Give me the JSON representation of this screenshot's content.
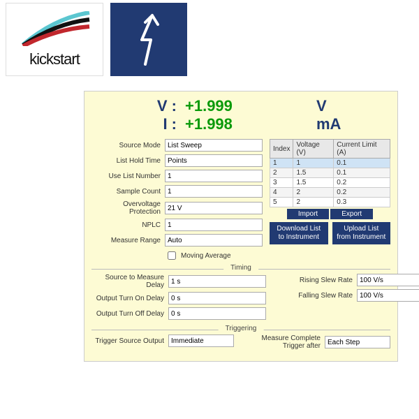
{
  "logos": {
    "kickstart_text": "kickstart",
    "bolt_bg": "#213a72"
  },
  "panel": {
    "bg": "#fdfbd4",
    "readout": {
      "v_label": "V :",
      "v_value": "+1.999",
      "v_unit": "V",
      "i_label": "I :",
      "i_value": "+1.998",
      "i_unit": "mA",
      "label_color": "#213a72",
      "value_color": "#0a9a0a"
    },
    "fields": {
      "source_mode": {
        "label": "Source Mode",
        "value": "List Sweep"
      },
      "list_hold_time": {
        "label": "List Hold Time",
        "value": "Points"
      },
      "use_list_number": {
        "label": "Use List Number",
        "value": "1"
      },
      "sample_count": {
        "label": "Sample Count",
        "value": "1"
      },
      "ov_protection": {
        "label": "Overvoltage Protection",
        "value": "21 V"
      },
      "nplc": {
        "label": "NPLC",
        "value": "1"
      },
      "measure_range": {
        "label": "Measure Range",
        "value": "Auto"
      },
      "moving_average": {
        "label": "Moving Average",
        "checked": false
      }
    },
    "list_table": {
      "headers": [
        "Index",
        "Voltage (V)",
        "Current Limit (A)"
      ],
      "rows": [
        {
          "idx": "1",
          "v": "1",
          "c": "0.1",
          "sel": true
        },
        {
          "idx": "2",
          "v": "1.5",
          "c": "0.1",
          "sel": false
        },
        {
          "idx": "3",
          "v": "1.5",
          "c": "0.2",
          "sel": false
        },
        {
          "idx": "4",
          "v": "2",
          "c": "0.2",
          "sel": false
        },
        {
          "idx": "5",
          "v": "2",
          "c": "0.3",
          "sel": false
        }
      ],
      "buttons": {
        "import": "Import",
        "export": "Export",
        "download": "Download List to Instrument",
        "upload": "Upload List from Instrument"
      }
    },
    "timing": {
      "legend": "Timing",
      "source_to_measure_delay": {
        "label": "Source to Measure Delay",
        "value": "1 s"
      },
      "output_turn_on_delay": {
        "label": "Output Turn On Delay",
        "value": "0 s"
      },
      "output_turn_off_delay": {
        "label": "Output Turn Off Delay",
        "value": "0 s"
      },
      "rising_slew_rate": {
        "label": "Rising Slew Rate",
        "value": "100 V/s"
      },
      "falling_slew_rate": {
        "label": "Falling Slew Rate",
        "value": "100 V/s"
      }
    },
    "triggering": {
      "legend": "Triggering",
      "trigger_source_output": {
        "label": "Trigger Source Output",
        "value": "Immediate"
      },
      "measure_complete": {
        "label": "Measure Complete Trigger after",
        "value": "Each Step"
      }
    }
  }
}
